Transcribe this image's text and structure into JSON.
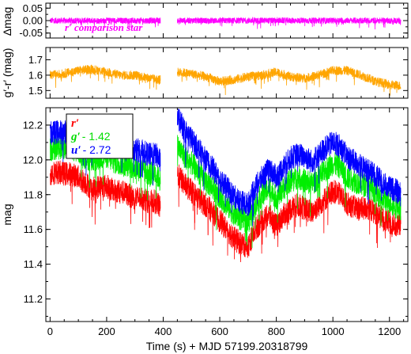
{
  "chart_data": [
    {
      "type": "line",
      "panel": "top",
      "ylabel": "Δmag",
      "ylim": [
        0.07,
        -0.07
      ],
      "yticks": [
        "-0.05",
        "0.00",
        "0.05"
      ],
      "ytick_values": [
        -0.05,
        0.0,
        0.05
      ],
      "annotation": "r′ comparison star",
      "annotation_color": "#ff00ff",
      "series": [
        {
          "color": "#ff00ff",
          "segments": [
            {
              "x": [
                0,
                30,
                60,
                90,
                120,
                150,
                180,
                210,
                240,
                270,
                300,
                330,
                360,
                390
              ],
              "y": [
                0.0,
                0.0,
                0.0,
                0.0,
                0.0,
                0.0,
                0.0,
                0.0,
                0.0,
                0.0,
                0.0,
                0.0,
                0.0,
                0.0
              ],
              "spread": 0.012
            },
            {
              "x": [
                450,
                500,
                550,
                600,
                650,
                700,
                750,
                800,
                850,
                900,
                950,
                1000,
                1050,
                1100,
                1150,
                1200,
                1240
              ],
              "y": [
                0.0,
                0.0,
                0.0,
                0.0,
                0.0,
                0.0,
                0.0,
                0.0,
                0.0,
                0.0,
                0.0,
                0.0,
                0.0,
                0.0,
                0.0,
                0.0,
                0.0
              ],
              "spread": 0.012
            }
          ]
        }
      ]
    },
    {
      "type": "line",
      "panel": "middle",
      "ylabel": "g′-r′ (mag)",
      "ylim": [
        1.78,
        1.45
      ],
      "yticks": [
        "1.7",
        "1.6",
        "1.5"
      ],
      "ytick_values": [
        1.7,
        1.6,
        1.5
      ],
      "series": [
        {
          "color": "#ffa500",
          "segments": [
            {
              "x": [
                0,
                50,
                100,
                150,
                200,
                250,
                300,
                350,
                390
              ],
              "y": [
                1.6,
                1.61,
                1.63,
                1.64,
                1.62,
                1.6,
                1.6,
                1.58,
                1.57
              ],
              "spread": 0.03
            },
            {
              "x": [
                450,
                500,
                550,
                600,
                650,
                700,
                750,
                800,
                850,
                900,
                950,
                1000,
                1050,
                1100,
                1150,
                1200,
                1240
              ],
              "y": [
                1.62,
                1.61,
                1.59,
                1.56,
                1.57,
                1.59,
                1.6,
                1.62,
                1.59,
                1.58,
                1.6,
                1.63,
                1.63,
                1.6,
                1.56,
                1.54,
                1.53
              ],
              "spread": 0.03
            }
          ]
        }
      ]
    },
    {
      "type": "line",
      "panel": "main",
      "xlabel": "Time (s) + MJD 57199.20318799",
      "ylabel": "mag",
      "xlim": [
        -15,
        1265
      ],
      "ylim": [
        12.3,
        11.07
      ],
      "xticks": [
        0,
        200,
        400,
        600,
        800,
        1000,
        1200
      ],
      "yticks": [
        "11.2",
        "11.4",
        "11.6",
        "11.8",
        "12.0",
        "12.2"
      ],
      "ytick_values": [
        11.2,
        11.4,
        11.6,
        11.8,
        12.0,
        12.2
      ],
      "legend": {
        "position": "top-left"
      },
      "series": [
        {
          "name": "r′",
          "name_suffix": "",
          "color": "#ff0000",
          "segments": [
            {
              "x": [
                0,
                25,
                50,
                75,
                100,
                125,
                150,
                175,
                200,
                225,
                250,
                275,
                300,
                325,
                350,
                375,
                390
              ],
              "y": [
                11.92,
                11.93,
                11.92,
                11.92,
                11.9,
                11.87,
                11.83,
                11.85,
                11.85,
                11.82,
                11.82,
                11.8,
                11.78,
                11.78,
                11.76,
                11.76,
                11.72
              ]
            },
            {
              "x": [
                450,
                475,
                500,
                525,
                550,
                575,
                600,
                625,
                650,
                675,
                700,
                725,
                750,
                775,
                800,
                825,
                850,
                875,
                900,
                925,
                950,
                975,
                1000,
                1025,
                1050,
                1075,
                1100,
                1125,
                1150,
                1175,
                1200,
                1225,
                1240
              ],
              "y": [
                11.92,
                11.86,
                11.82,
                11.78,
                11.74,
                11.7,
                11.65,
                11.6,
                11.55,
                11.52,
                11.5,
                11.6,
                11.65,
                11.68,
                11.62,
                11.68,
                11.72,
                11.74,
                11.72,
                11.7,
                11.74,
                11.78,
                11.82,
                11.8,
                11.75,
                11.73,
                11.72,
                11.72,
                11.7,
                11.66,
                11.64,
                11.62,
                11.62
              ]
            }
          ]
        },
        {
          "name": "g′",
          "name_suffix": "- 1.42",
          "color": "#00ee00",
          "segments": [
            {
              "x": [
                0,
                25,
                50,
                75,
                100,
                125,
                150,
                175,
                200,
                225,
                250,
                275,
                300,
                325,
                350,
                375,
                390
              ],
              "y": [
                12.06,
                12.07,
                12.07,
                12.07,
                12.05,
                12.02,
                11.99,
                12.01,
                12.02,
                11.99,
                11.98,
                11.97,
                11.95,
                11.94,
                11.92,
                11.92,
                11.88
              ]
            },
            {
              "x": [
                450,
                475,
                500,
                525,
                550,
                575,
                600,
                625,
                650,
                675,
                700,
                725,
                750,
                775,
                800,
                825,
                850,
                875,
                900,
                925,
                950,
                975,
                1000,
                1025,
                1050,
                1075,
                1100,
                1125,
                1150,
                1175,
                1200,
                1225,
                1240
              ],
              "y": [
                12.08,
                12.02,
                11.98,
                11.93,
                11.88,
                11.84,
                11.79,
                11.74,
                11.69,
                11.66,
                11.64,
                11.74,
                11.8,
                11.84,
                11.78,
                11.84,
                11.88,
                11.9,
                11.88,
                11.86,
                11.9,
                11.94,
                11.98,
                11.96,
                11.9,
                11.88,
                11.86,
                11.85,
                11.82,
                11.78,
                11.76,
                11.73,
                11.72
              ]
            }
          ]
        },
        {
          "name": "u′",
          "name_suffix": "- 2.72",
          "color": "#0000ff",
          "segments": [
            {
              "x": [
                0,
                25,
                50,
                75,
                100,
                125,
                150,
                175,
                200,
                225,
                250,
                275,
                300,
                325,
                350,
                375,
                390
              ],
              "y": [
                12.15,
                12.16,
                12.16,
                12.16,
                12.14,
                12.12,
                12.1,
                12.12,
                12.13,
                12.1,
                12.09,
                12.08,
                12.06,
                12.05,
                12.03,
                12.03,
                11.99
              ]
            },
            {
              "x": [
                450,
                475,
                500,
                525,
                550,
                575,
                600,
                625,
                650,
                675,
                700,
                725,
                750,
                775,
                800,
                825,
                850,
                875,
                900,
                925,
                950,
                975,
                1000,
                1025,
                1050,
                1075,
                1100,
                1125,
                1150,
                1175,
                1200,
                1225,
                1240
              ],
              "y": [
                12.25,
                12.17,
                12.12,
                12.06,
                12.0,
                11.95,
                11.89,
                11.84,
                11.79,
                11.76,
                11.74,
                11.84,
                11.9,
                11.95,
                11.9,
                11.96,
                12.01,
                12.03,
                12.02,
                11.99,
                12.03,
                12.07,
                12.1,
                12.08,
                12.02,
                11.99,
                11.96,
                11.94,
                11.91,
                11.87,
                11.84,
                11.82,
                11.8
              ]
            }
          ]
        }
      ]
    }
  ]
}
